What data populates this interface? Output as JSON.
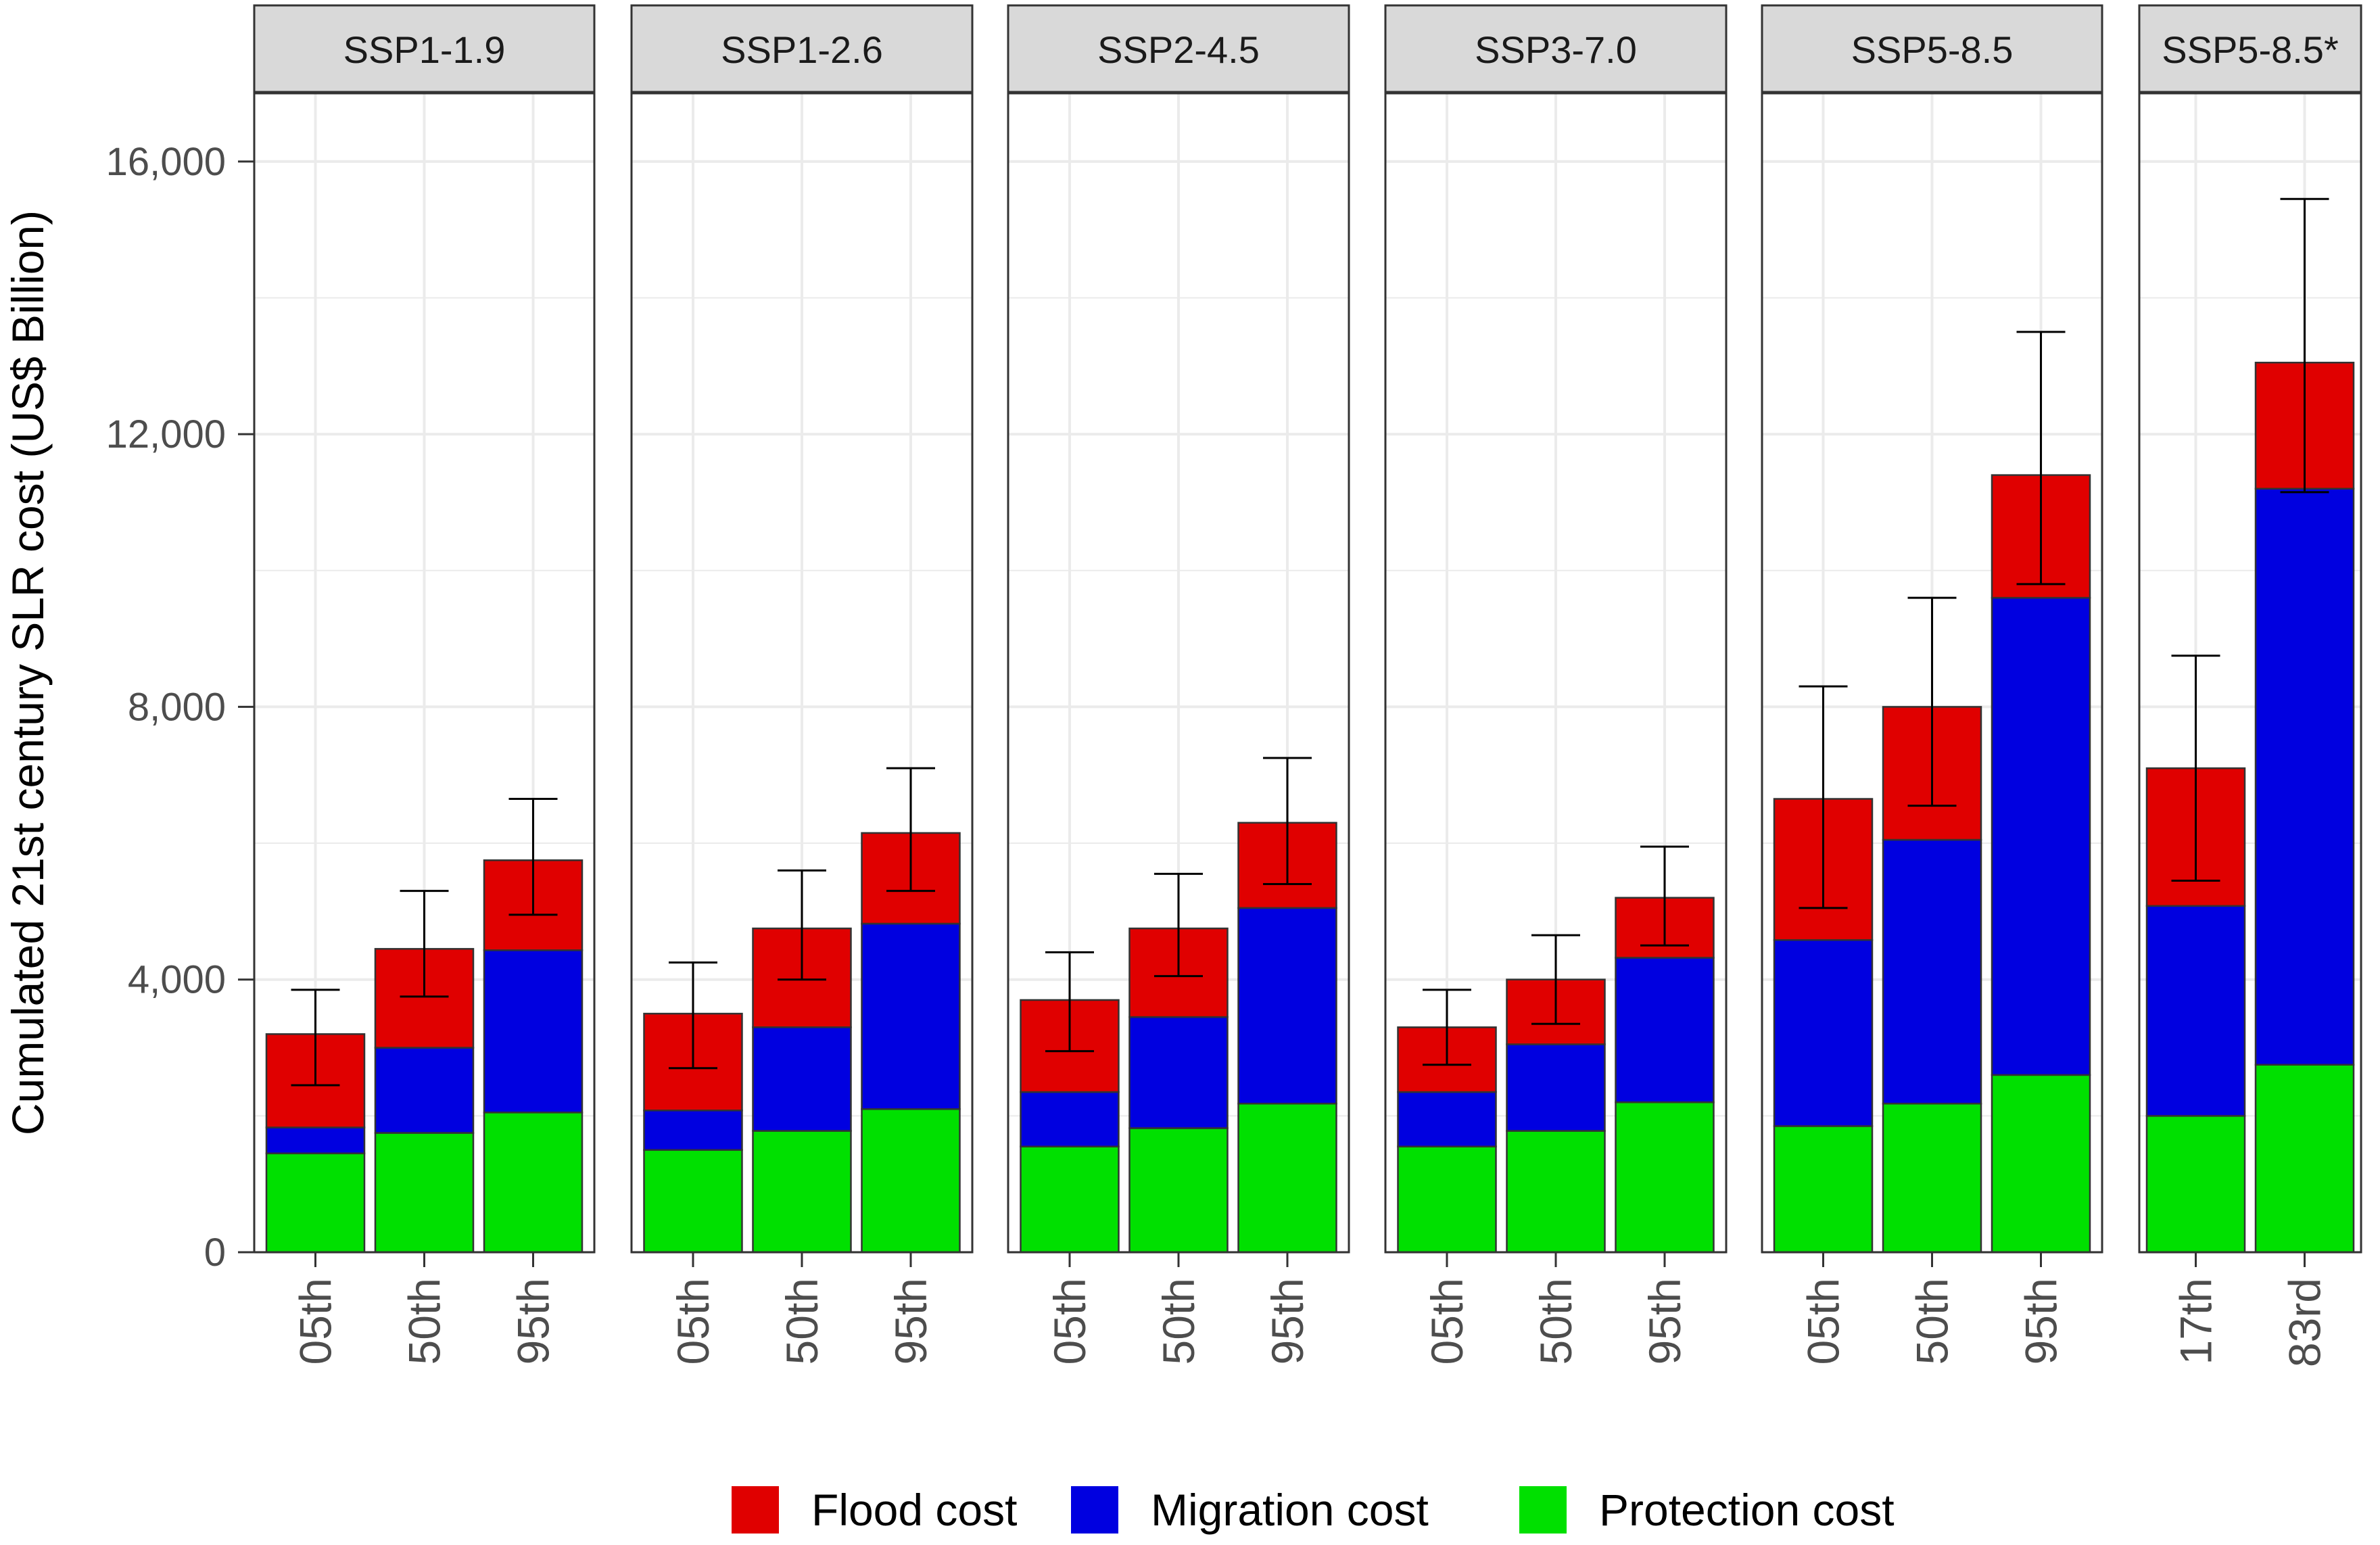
{
  "chart_data": {
    "type": "bar",
    "stacked": true,
    "ylabel": "Cumulated 21st century SLR cost (US$ Billion)",
    "xlabel": "",
    "ylim": [
      0,
      17000
    ],
    "yticks": [
      0,
      4000,
      8000,
      12000,
      16000
    ],
    "ytick_labels": [
      "0",
      "4,000",
      "8,000",
      "12,000",
      "16,000"
    ],
    "grid": true,
    "legend_position": "bottom",
    "series": [
      {
        "key": "flood",
        "name": "Flood cost",
        "color": "#E00000"
      },
      {
        "key": "migration",
        "name": "Migration cost",
        "color": "#0000E0"
      },
      {
        "key": "protection",
        "name": "Protection cost",
        "color": "#00E000"
      }
    ],
    "panels": [
      {
        "title": "SSP1-1.9",
        "bars": [
          {
            "label": "05th",
            "protection": 1450,
            "migration": 380,
            "flood": 1370,
            "err_low": 2450,
            "err_high": 3850
          },
          {
            "label": "50th",
            "protection": 1750,
            "migration": 1250,
            "flood": 1450,
            "err_low": 3750,
            "err_high": 5300
          },
          {
            "label": "95th",
            "protection": 2050,
            "migration": 2380,
            "flood": 1320,
            "err_low": 4950,
            "err_high": 6650
          }
        ]
      },
      {
        "title": "SSP1-2.6",
        "bars": [
          {
            "label": "05th",
            "protection": 1500,
            "migration": 580,
            "flood": 1420,
            "err_low": 2700,
            "err_high": 4250
          },
          {
            "label": "50th",
            "protection": 1780,
            "migration": 1520,
            "flood": 1450,
            "err_low": 4000,
            "err_high": 5600
          },
          {
            "label": "95th",
            "protection": 2100,
            "migration": 2720,
            "flood": 1330,
            "err_low": 5300,
            "err_high": 7100
          }
        ]
      },
      {
        "title": "SSP2-4.5",
        "bars": [
          {
            "label": "05th",
            "protection": 1550,
            "migration": 800,
            "flood": 1350,
            "err_low": 2950,
            "err_high": 4400
          },
          {
            "label": "50th",
            "protection": 1820,
            "migration": 1630,
            "flood": 1300,
            "err_low": 4050,
            "err_high": 5550
          },
          {
            "label": "95th",
            "protection": 2180,
            "migration": 2870,
            "flood": 1250,
            "err_low": 5400,
            "err_high": 7250
          }
        ]
      },
      {
        "title": "SSP3-7.0",
        "bars": [
          {
            "label": "05th",
            "protection": 1550,
            "migration": 800,
            "flood": 950,
            "err_low": 2750,
            "err_high": 3850
          },
          {
            "label": "50th",
            "protection": 1780,
            "migration": 1270,
            "flood": 950,
            "err_low": 3350,
            "err_high": 4650
          },
          {
            "label": "95th",
            "protection": 2200,
            "migration": 2120,
            "flood": 880,
            "err_low": 4500,
            "err_high": 5950
          }
        ]
      },
      {
        "title": "SSP5-8.5",
        "bars": [
          {
            "label": "05th",
            "protection": 1850,
            "migration": 2730,
            "flood": 2070,
            "err_low": 5050,
            "err_high": 8300
          },
          {
            "label": "50th",
            "protection": 2180,
            "migration": 3870,
            "flood": 1950,
            "err_low": 6550,
            "err_high": 9600
          },
          {
            "label": "95th",
            "protection": 2600,
            "migration": 7000,
            "flood": 1800,
            "err_low": 9800,
            "err_high": 13500
          }
        ]
      },
      {
        "title": "SSP5-8.5*",
        "bars": [
          {
            "label": "17th",
            "protection": 2000,
            "migration": 3080,
            "flood": 2020,
            "err_low": 5450,
            "err_high": 8750
          },
          {
            "label": "83rd",
            "protection": 2750,
            "migration": 8450,
            "flood": 1850,
            "err_low": 11150,
            "err_high": 15450
          }
        ]
      }
    ]
  }
}
